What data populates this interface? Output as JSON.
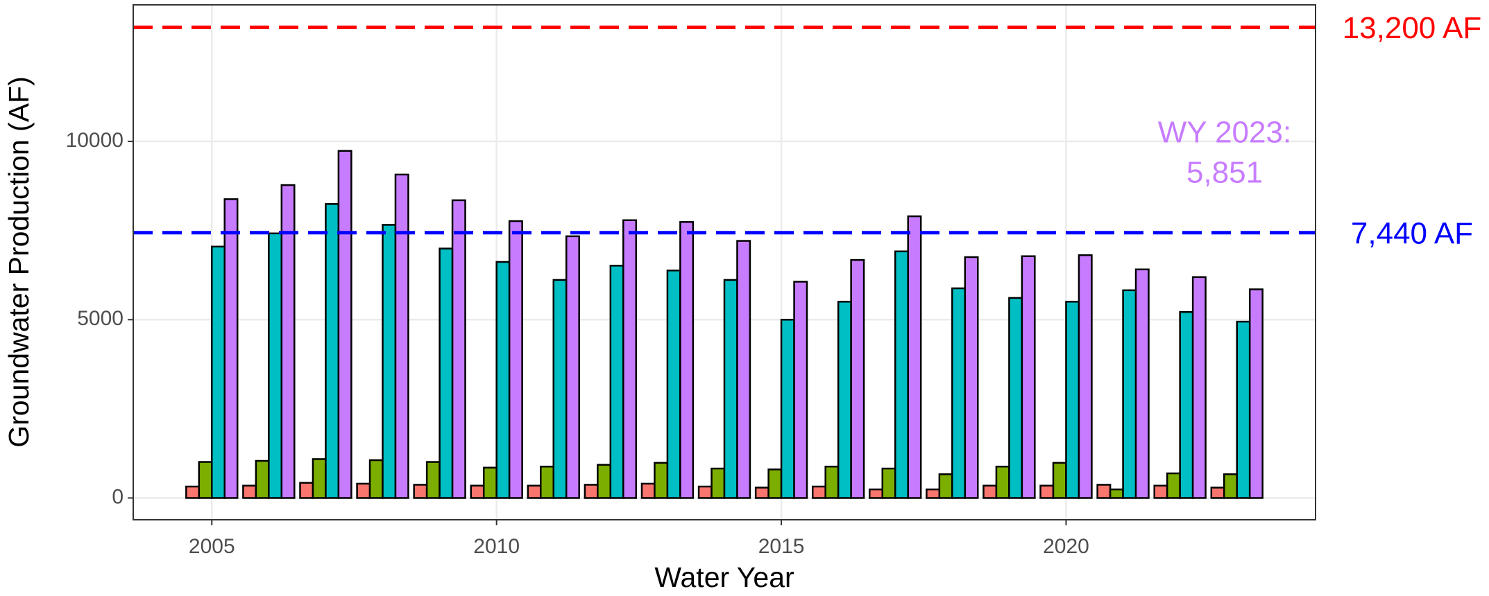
{
  "chart_data": {
    "type": "bar",
    "x_label": "Water Year",
    "y_label": "Groundwater Production (AF)",
    "x": [
      2005,
      2006,
      2007,
      2008,
      2009,
      2010,
      2011,
      2012,
      2013,
      2014,
      2015,
      2016,
      2017,
      2018,
      2019,
      2020,
      2021,
      2022,
      2023
    ],
    "series": [
      {
        "color": "#f8766d",
        "values": [
          320,
          345,
          425,
          400,
          370,
          345,
          345,
          370,
          400,
          320,
          290,
          320,
          240,
          240,
          345,
          345,
          370,
          345,
          290
        ]
      },
      {
        "color": "#7cae00",
        "values": [
          1010,
          1040,
          1090,
          1060,
          1010,
          850,
          880,
          930,
          985,
          825,
          800,
          880,
          825,
          665,
          880,
          985,
          240,
          690,
          665
        ]
      },
      {
        "color": "#00bfc4",
        "values": [
          7050,
          7420,
          8245,
          7660,
          6995,
          6620,
          6115,
          6515,
          6380,
          6115,
          5000,
          5505,
          6915,
          5880,
          5610,
          5505,
          5825,
          5215,
          4945
        ]
      },
      {
        "color": "#c77cff",
        "values": [
          8380,
          8775,
          9735,
          9070,
          8350,
          7765,
          7340,
          7790,
          7740,
          7210,
          6065,
          6675,
          7900,
          6755,
          6780,
          6810,
          6410,
          6195,
          5851
        ]
      }
    ],
    "xlim": [
      2003.62,
      2024.38
    ],
    "xticks": [
      2005,
      2010,
      2015,
      2020
    ],
    "ylim": [
      -612,
      13830
    ],
    "yticks": [
      0,
      5000,
      10000
    ],
    "grid": true,
    "hlines": [
      {
        "value": 13200,
        "label": "13,200 AF",
        "color": "#ff0000"
      },
      {
        "value": 7440,
        "label": "7,440 AF",
        "color": "#0000ff"
      }
    ],
    "annotation": {
      "lines": [
        "WY 2023:",
        "5,851"
      ],
      "color": "#c77cff"
    }
  }
}
